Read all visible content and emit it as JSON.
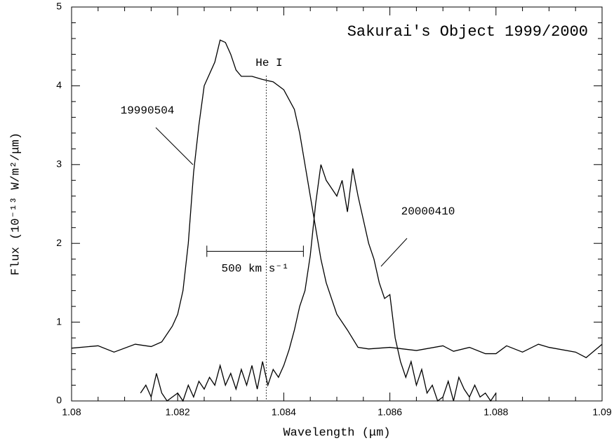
{
  "chart_data": {
    "type": "line",
    "title": "Sakurai's Object  1999/2000",
    "xlabel": "Wavelength (μm)",
    "ylabel": "Flux (10⁻¹³ W/m²/μm)",
    "xlim": [
      1.08,
      1.09
    ],
    "xticks": [
      1.08,
      1.082,
      1.084,
      1.086,
      1.088,
      1.09
    ],
    "xminor": [
      1.0805,
      1.081,
      1.0815,
      1.0825,
      1.083,
      1.0835,
      1.0845,
      1.085,
      1.0855,
      1.0865,
      1.087,
      1.0875,
      1.0885,
      1.089,
      1.0895
    ],
    "ylim": [
      0,
      5
    ],
    "yticks": [
      0,
      1,
      2,
      3,
      4,
      5
    ],
    "yminor": [
      0.2,
      0.4,
      0.6,
      0.8,
      1.2,
      1.4,
      1.6,
      1.8,
      2.2,
      2.4,
      2.6,
      2.8,
      3.2,
      3.4,
      3.6,
      3.8,
      4.2,
      4.4,
      4.6,
      4.8
    ],
    "series": [
      {
        "name": "19990504",
        "color": "#000000",
        "x": [
          1.08,
          1.0805,
          1.0808,
          1.0812,
          1.0815,
          1.0817,
          1.0819,
          1.082,
          1.0821,
          1.0822,
          1.0823,
          1.0824,
          1.0825,
          1.0827,
          1.0828,
          1.0829,
          1.083,
          1.0831,
          1.0832,
          1.0834,
          1.0836,
          1.0838,
          1.084,
          1.0842,
          1.0843,
          1.0844,
          1.0845,
          1.0846,
          1.0847,
          1.0848,
          1.085,
          1.0852,
          1.0854,
          1.0856,
          1.086,
          1.0865,
          1.087,
          1.0872,
          1.0875,
          1.0878,
          1.088,
          1.0882,
          1.0885,
          1.0888,
          1.089,
          1.0895,
          1.0897,
          1.09
        ],
        "values": [
          0.67,
          0.7,
          0.62,
          0.72,
          0.69,
          0.75,
          0.95,
          1.1,
          1.4,
          2.0,
          2.9,
          3.5,
          4.0,
          4.3,
          4.58,
          4.55,
          4.4,
          4.2,
          4.12,
          4.12,
          4.08,
          4.05,
          3.95,
          3.7,
          3.4,
          3.0,
          2.6,
          2.2,
          1.8,
          1.5,
          1.1,
          0.9,
          0.68,
          0.66,
          0.68,
          0.64,
          0.7,
          0.63,
          0.68,
          0.6,
          0.6,
          0.7,
          0.62,
          0.72,
          0.68,
          0.62,
          0.55,
          0.72
        ]
      },
      {
        "name": "20000410",
        "color": "#000000",
        "x": [
          1.0813,
          1.0814,
          1.0815,
          1.0816,
          1.0817,
          1.0818,
          1.0819,
          1.082,
          1.0821,
          1.0822,
          1.0823,
          1.0824,
          1.0825,
          1.0826,
          1.0827,
          1.0828,
          1.0829,
          1.083,
          1.0831,
          1.0832,
          1.0833,
          1.0834,
          1.0835,
          1.0836,
          1.0837,
          1.0838,
          1.0839,
          1.084,
          1.0841,
          1.0842,
          1.0843,
          1.0844,
          1.0845,
          1.0846,
          1.0847,
          1.0848,
          1.0849,
          1.085,
          1.0851,
          1.0852,
          1.0853,
          1.0854,
          1.0855,
          1.0856,
          1.0857,
          1.0858,
          1.0859,
          1.086,
          1.0861,
          1.0862,
          1.0863,
          1.0864,
          1.0865,
          1.0866,
          1.0867,
          1.0868,
          1.0869,
          1.087,
          1.0871,
          1.0872,
          1.0873,
          1.0874,
          1.0875,
          1.0876,
          1.0877,
          1.0878,
          1.0879,
          1.088
        ],
        "values": [
          0.1,
          0.2,
          0.05,
          0.35,
          0.1,
          0.0,
          0.05,
          0.1,
          0.0,
          0.2,
          0.05,
          0.25,
          0.15,
          0.3,
          0.2,
          0.45,
          0.2,
          0.35,
          0.15,
          0.4,
          0.2,
          0.45,
          0.15,
          0.5,
          0.2,
          0.4,
          0.3,
          0.45,
          0.65,
          0.9,
          1.2,
          1.4,
          1.85,
          2.5,
          3.0,
          2.8,
          2.7,
          2.6,
          2.8,
          2.4,
          2.95,
          2.6,
          2.3,
          2.0,
          1.8,
          1.5,
          1.3,
          1.35,
          0.8,
          0.5,
          0.3,
          0.5,
          0.2,
          0.4,
          0.1,
          0.2,
          0.0,
          0.05,
          0.25,
          0.0,
          0.3,
          0.15,
          0.05,
          0.2,
          0.05,
          0.1,
          0.0,
          0.1
        ]
      }
    ],
    "line_marker": {
      "label": "He I",
      "x": 1.08367
    },
    "scale_bar": {
      "label": "500 km s⁻¹",
      "x": [
        1.08255,
        1.08437
      ],
      "y": 1.9
    }
  }
}
